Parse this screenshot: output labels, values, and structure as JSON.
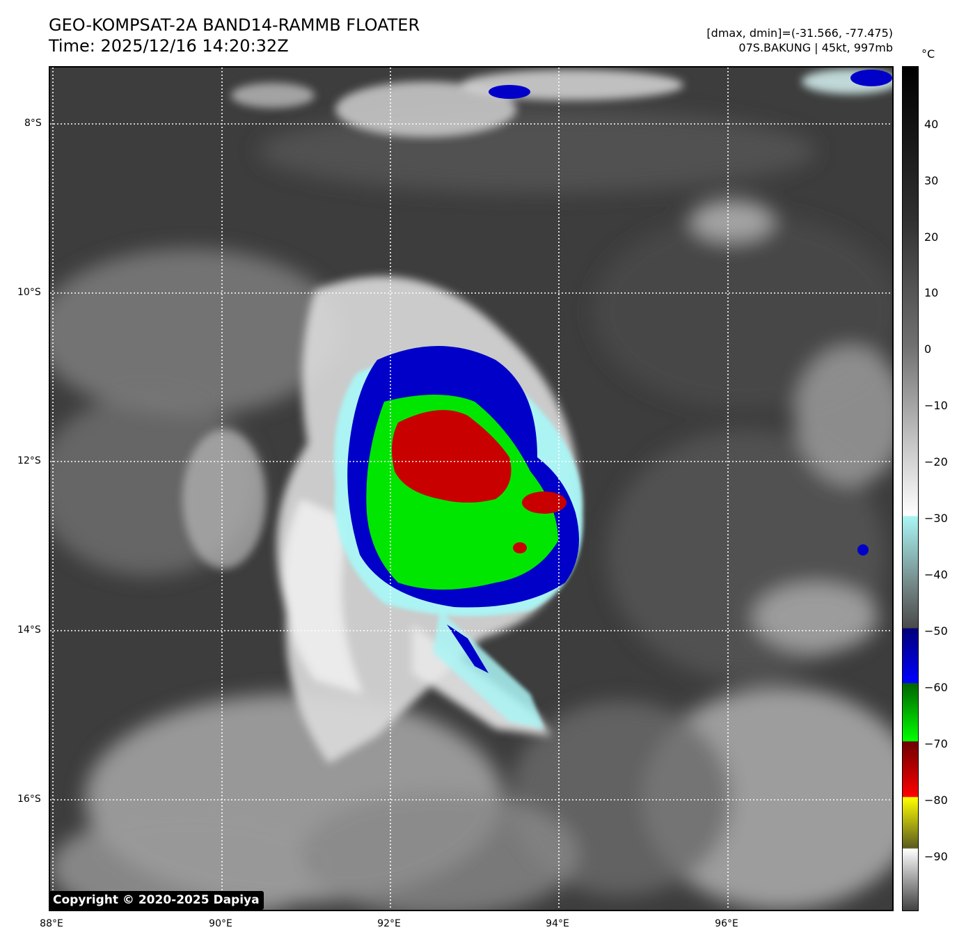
{
  "header": {
    "title_line1": "GEO-KOMPSAT-2A BAND14-RAMMB FLOATER",
    "title_line2": "Time: 2025/12/16 14:20:32Z",
    "info_line1": "[dmax, dmin]=(-31.566, -77.475)",
    "info_line2": "07S.BAKUNG | 45kt, 997mb"
  },
  "map": {
    "lat_labels": [
      "8°S",
      "10°S",
      "12°S",
      "14°S",
      "16°S"
    ],
    "lon_labels": [
      "88°E",
      "90°E",
      "92°E",
      "94°E",
      "96°E"
    ],
    "copyright": "Copyright © 2020-2025 Dapiya"
  },
  "colorbar": {
    "unit": "°C",
    "ticks": [
      "40",
      "30",
      "20",
      "10",
      "0",
      "−10",
      "−20",
      "−30",
      "−40",
      "−50",
      "−60",
      "−70",
      "−80",
      "−90"
    ],
    "colors": {
      "warm": "#0a0a0a",
      "cyan": "#aaf5f5",
      "blue": "#0000c8",
      "green": "#00e600",
      "red": "#c80000",
      "yellow": "#f0f000"
    }
  }
}
